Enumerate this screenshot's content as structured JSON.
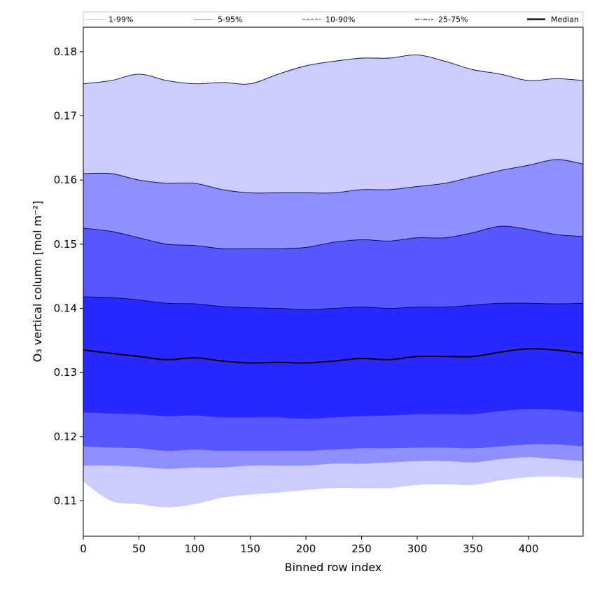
{
  "chart_data": {
    "type": "area",
    "xlabel": "Binned row index",
    "ylabel": "O₃ vertical column [mol m⁻²]",
    "xlim": [
      0,
      449
    ],
    "ylim": [
      0.1045,
      0.1838
    ],
    "x_ticks": [
      0,
      50,
      100,
      150,
      200,
      250,
      300,
      350,
      400
    ],
    "x_tick_labels": [
      "0",
      "50",
      "100",
      "150",
      "200",
      "250",
      "300",
      "350",
      "400"
    ],
    "y_ticks": [
      0.11,
      0.12,
      0.13,
      0.14,
      0.15,
      0.16,
      0.17,
      0.18
    ],
    "y_tick_labels": [
      "0.11",
      "0.12",
      "0.13",
      "0.14",
      "0.15",
      "0.16",
      "0.17",
      "0.18"
    ],
    "grid": false,
    "legend": {
      "placement": "top",
      "entries": [
        {
          "label": "1-99%",
          "color": "#ccccff",
          "style": "solid-thin"
        },
        {
          "label": "5-95%",
          "color": "#8f8fff",
          "style": "solid-thin"
        },
        {
          "label": "10-90%",
          "color": "#5757ff",
          "style": "dashed"
        },
        {
          "label": "25-75%",
          "color": "#2929ff",
          "style": "dashdot"
        },
        {
          "label": "Median",
          "color": "#000000",
          "style": "solid-thick"
        }
      ]
    },
    "x": [
      0,
      25,
      50,
      75,
      100,
      125,
      150,
      175,
      200,
      225,
      250,
      275,
      300,
      325,
      350,
      375,
      400,
      425,
      449
    ],
    "bands": [
      {
        "name": "1-99%",
        "color": "#ccccff",
        "upper": [
          0.175,
          0.1755,
          0.1765,
          0.1755,
          0.175,
          0.1752,
          0.175,
          0.1765,
          0.1778,
          0.1785,
          0.179,
          0.179,
          0.1795,
          0.1785,
          0.1772,
          0.1765,
          0.1755,
          0.1758,
          0.1755
        ],
        "lower": [
          0.113,
          0.11,
          0.1095,
          0.109,
          0.1095,
          0.1105,
          0.111,
          0.1113,
          0.1117,
          0.112,
          0.112,
          0.112,
          0.1125,
          0.1126,
          0.1125,
          0.1132,
          0.1137,
          0.1138,
          0.1135
        ]
      },
      {
        "name": "5-95%",
        "color": "#8f8fff",
        "upper": [
          0.161,
          0.161,
          0.16,
          0.1595,
          0.1595,
          0.1585,
          0.158,
          0.158,
          0.158,
          0.158,
          0.1585,
          0.1585,
          0.159,
          0.1595,
          0.1605,
          0.1615,
          0.1623,
          0.1632,
          0.1625
        ],
        "lower": [
          0.1155,
          0.1155,
          0.1153,
          0.115,
          0.1152,
          0.1152,
          0.1155,
          0.1155,
          0.1155,
          0.1158,
          0.1158,
          0.116,
          0.1162,
          0.1162,
          0.116,
          0.1165,
          0.1168,
          0.1165,
          0.1162
        ]
      },
      {
        "name": "10-90%",
        "color": "#5757ff",
        "upper": [
          0.1525,
          0.152,
          0.151,
          0.15,
          0.1498,
          0.1493,
          0.1493,
          0.1493,
          0.1495,
          0.1503,
          0.1507,
          0.1505,
          0.151,
          0.151,
          0.1518,
          0.1528,
          0.1523,
          0.1515,
          0.1512
        ],
        "lower": [
          0.1185,
          0.1183,
          0.1182,
          0.1178,
          0.118,
          0.1178,
          0.1178,
          0.1178,
          0.1178,
          0.118,
          0.1182,
          0.1182,
          0.1183,
          0.1183,
          0.1182,
          0.1185,
          0.1188,
          0.1188,
          0.1185
        ]
      },
      {
        "name": "25-75%",
        "color": "#2929ff",
        "upper": [
          0.1418,
          0.1417,
          0.1413,
          0.1408,
          0.1407,
          0.1403,
          0.1401,
          0.14,
          0.1398,
          0.14,
          0.1402,
          0.14,
          0.1402,
          0.1402,
          0.1405,
          0.1408,
          0.1408,
          0.1407,
          0.1408
        ],
        "lower": [
          0.1238,
          0.1236,
          0.1235,
          0.1232,
          0.1233,
          0.123,
          0.123,
          0.123,
          0.1228,
          0.123,
          0.1232,
          0.1233,
          0.1235,
          0.1235,
          0.1235,
          0.124,
          0.1243,
          0.1242,
          0.1238
        ]
      }
    ],
    "series": [
      {
        "name": "Median",
        "color": "#000000",
        "values": [
          0.1335,
          0.133,
          0.1325,
          0.132,
          0.1323,
          0.1318,
          0.1315,
          0.1316,
          0.1315,
          0.1318,
          0.1322,
          0.132,
          0.1325,
          0.1325,
          0.1325,
          0.1332,
          0.1337,
          0.1335,
          0.133
        ]
      }
    ]
  }
}
